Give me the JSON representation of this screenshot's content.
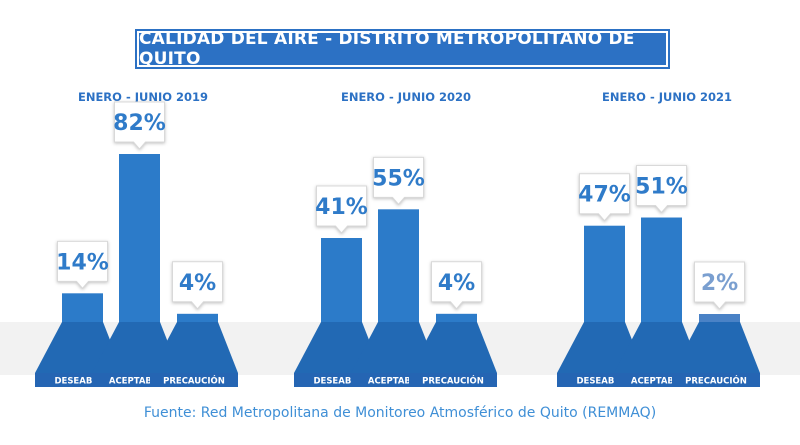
{
  "title": "CALIDAD DEL AIRE - DISTRITO METROPOLITANO DE QUITO",
  "source": "Fuente: Red Metropolitana de Monitoreo Atmosférico de Quito (REMMAQ)",
  "colors": {
    "bar": "#2c7bc9",
    "bar_dark": "#2269b4",
    "label_bg": "#2565b3",
    "period_text": "#2c71c4",
    "value_text": "#2f7bc9",
    "muted_bar": "#4a82c6",
    "muted_value": "#7a9fd0",
    "band": "#f2f2f2"
  },
  "chart_data": [
    {
      "type": "bar",
      "title": "ENERO - JUNIO 2019",
      "categories": [
        "DESEABLE",
        "ACEPTABLE",
        "PRECAUCIÓN"
      ],
      "values": [
        14,
        82,
        4
      ],
      "value_labels": [
        "14%",
        "82%",
        "4%"
      ],
      "ylim": [
        0,
        100
      ]
    },
    {
      "type": "bar",
      "title": "ENERO - JUNIO 2020",
      "categories": [
        "DESEABLE",
        "ACEPTABLE",
        "PRECAUCIÓN"
      ],
      "values": [
        41,
        55,
        4
      ],
      "value_labels": [
        "41%",
        "55%",
        "4%"
      ],
      "ylim": [
        0,
        100
      ]
    },
    {
      "type": "bar",
      "title": "ENERO - JUNIO 2021",
      "categories": [
        "DESEABLE",
        "ACEPTABLE",
        "PRECAUCIÓN"
      ],
      "values": [
        47,
        51,
        2
      ],
      "value_labels": [
        "47%",
        "51%",
        "2%"
      ],
      "ylim": [
        0,
        100
      ]
    }
  ]
}
